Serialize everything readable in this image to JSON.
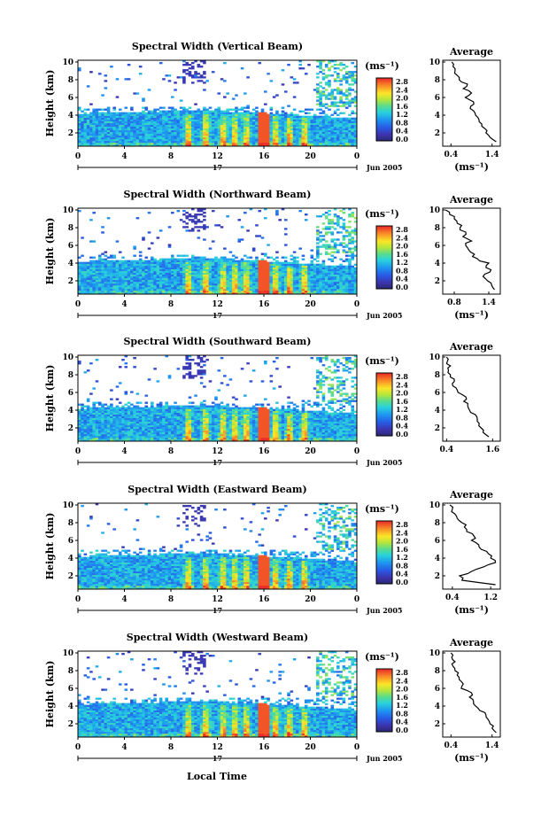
{
  "figure": {
    "xlabel": "Local Time"
  },
  "chart_data": [
    {
      "type": "heatmap",
      "title": "Spectral Width (Vertical Beam)",
      "ylabel": "Height (km)",
      "xticks": [
        "0",
        "4",
        "8",
        "12",
        "16",
        "20",
        "0"
      ],
      "yticks": [
        "2",
        "4",
        "6",
        "8",
        "10"
      ],
      "day_label": "17",
      "date_label": "Jun 2005",
      "colorbar": {
        "unit": "(ms⁻¹)",
        "ticks": [
          "0.0",
          "0.4",
          "0.8",
          "1.2",
          "1.6",
          "2.0",
          "2.4",
          "2.8"
        ]
      },
      "average": {
        "title": "Average",
        "xlabel": "(ms⁻¹)",
        "xticks": [
          "0.4",
          "1.4"
        ],
        "xlim": [
          0.2,
          1.6
        ],
        "yticks": [
          "2",
          "4",
          "6",
          "8",
          "10"
        ],
        "height": [
          1,
          1.5,
          2,
          2.5,
          3,
          3.5,
          4,
          4.5,
          5,
          5.5,
          6,
          6.5,
          7,
          7.5,
          8,
          8.5,
          9,
          9.5,
          10
        ],
        "width": [
          1.5,
          1.35,
          1.25,
          1.22,
          1.15,
          1.08,
          1.0,
          0.95,
          0.88,
          0.95,
          0.75,
          0.9,
          0.7,
          0.8,
          0.6,
          0.55,
          0.5,
          0.45,
          0.42
        ]
      }
    },
    {
      "type": "heatmap",
      "title": "Spectral Width (Northward Beam)",
      "ylabel": "Height (km)",
      "xticks": [
        "0",
        "4",
        "8",
        "12",
        "16",
        "20",
        "0"
      ],
      "yticks": [
        "2",
        "4",
        "6",
        "8",
        "10"
      ],
      "day_label": "17",
      "date_label": "Jun 2005",
      "colorbar": {
        "unit": "(ms⁻¹)",
        "ticks": [
          "0.0",
          "0.4",
          "0.8",
          "1.2",
          "1.6",
          "2.0",
          "2.4",
          "2.8"
        ]
      },
      "average": {
        "title": "Average",
        "xlabel": "(ms⁻¹)",
        "xticks": [
          "0.8",
          "1.4"
        ],
        "xlim": [
          0.6,
          1.6
        ],
        "yticks": [
          "2",
          "4",
          "6",
          "8",
          "10"
        ],
        "height": [
          1,
          1.5,
          2,
          2.5,
          3,
          3.5,
          4,
          4.5,
          5,
          5.5,
          6,
          6.5,
          7,
          7.5,
          8,
          8.5,
          9,
          9.5,
          10
        ],
        "width": [
          1.5,
          1.45,
          1.38,
          1.3,
          1.42,
          1.35,
          1.4,
          1.2,
          1.15,
          1.05,
          1.0,
          1.1,
          0.95,
          1.0,
          0.9,
          0.85,
          0.8,
          0.72,
          0.65
        ]
      }
    },
    {
      "type": "heatmap",
      "title": "Spectral Width (Southward Beam)",
      "ylabel": "Height (km)",
      "xticks": [
        "0",
        "4",
        "8",
        "12",
        "16",
        "20",
        "0"
      ],
      "yticks": [
        "2",
        "4",
        "6",
        "8",
        "10"
      ],
      "day_label": "17",
      "date_label": "Jun 2005",
      "colorbar": {
        "unit": "(ms⁻¹)",
        "ticks": [
          "0.0",
          "0.4",
          "0.8",
          "1.2",
          "1.6",
          "2.0",
          "2.4",
          "2.8"
        ]
      },
      "average": {
        "title": "Average",
        "xlabel": "",
        "xticks": [
          "0.4",
          "1.6"
        ],
        "xlim": [
          0.3,
          1.8
        ],
        "yticks": [
          "2",
          "4",
          "6",
          "8",
          "10"
        ],
        "height": [
          1,
          1.5,
          2,
          2.5,
          3,
          3.5,
          4,
          4.5,
          5,
          5.5,
          6,
          6.5,
          7,
          7.5,
          8,
          8.5,
          9,
          9.5,
          10
        ],
        "width": [
          1.5,
          1.35,
          1.3,
          1.25,
          1.2,
          1.15,
          1.0,
          0.95,
          0.85,
          0.9,
          0.7,
          0.65,
          0.55,
          0.6,
          0.5,
          0.45,
          0.5,
          0.42,
          0.4
        ]
      }
    },
    {
      "type": "heatmap",
      "title": "Spectral Width (Eastward Beam)",
      "ylabel": "Height (km)",
      "xticks": [
        "0",
        "4",
        "8",
        "12",
        "16",
        "20",
        "0"
      ],
      "yticks": [
        "2",
        "4",
        "6",
        "8",
        "10"
      ],
      "day_label": "17",
      "date_label": "Jun 2005",
      "colorbar": {
        "unit": "(ms⁻¹)",
        "ticks": [
          "0.0",
          "0.4",
          "0.8",
          "1.2",
          "1.6",
          "2.0",
          "2.4",
          "2.8"
        ]
      },
      "average": {
        "title": "Average",
        "xlabel": "(ms⁻¹)",
        "xticks": [
          "0.4",
          "1.2"
        ],
        "xlim": [
          0.2,
          1.4
        ],
        "yticks": [
          "2",
          "4",
          "6",
          "8",
          "10"
        ],
        "height": [
          1,
          1.5,
          2,
          2.5,
          3,
          3.5,
          4,
          4.5,
          5,
          5.5,
          6,
          6.5,
          7,
          7.5,
          8,
          8.5,
          9,
          9.5,
          10
        ],
        "width": [
          1.3,
          0.6,
          0.55,
          0.8,
          1.05,
          1.3,
          1.2,
          1.15,
          1.0,
          0.95,
          0.8,
          0.85,
          0.7,
          0.65,
          0.6,
          0.5,
          0.45,
          0.4,
          0.35
        ]
      }
    },
    {
      "type": "heatmap",
      "title": "Spectral Width (Westward Beam)",
      "ylabel": "Height (km)",
      "xticks": [
        "0",
        "4",
        "8",
        "12",
        "16",
        "20",
        "0"
      ],
      "yticks": [
        "2",
        "4",
        "6",
        "8",
        "10"
      ],
      "day_label": "17",
      "date_label": "Jun 2005",
      "colorbar": {
        "unit": "(ms⁻¹)",
        "ticks": [
          "0.0",
          "0.4",
          "0.8",
          "1.2",
          "1.6",
          "2.0",
          "2.4",
          "2.8"
        ]
      },
      "average": {
        "title": "Average",
        "xlabel": "(ms⁻¹)",
        "xticks": [
          "0.4",
          "1.4"
        ],
        "xlim": [
          0.2,
          1.6
        ],
        "yticks": [
          "2",
          "4",
          "6",
          "8",
          "10"
        ],
        "height": [
          1,
          1.5,
          2,
          2.5,
          3,
          3.5,
          4,
          4.5,
          5,
          5.5,
          6,
          6.5,
          7,
          7.5,
          8,
          8.5,
          9,
          9.5,
          10
        ],
        "width": [
          1.5,
          1.4,
          1.35,
          1.3,
          1.25,
          1.1,
          1.0,
          0.95,
          0.85,
          0.9,
          0.65,
          0.7,
          0.6,
          0.55,
          0.5,
          0.45,
          0.5,
          0.42,
          0.4
        ]
      }
    }
  ]
}
